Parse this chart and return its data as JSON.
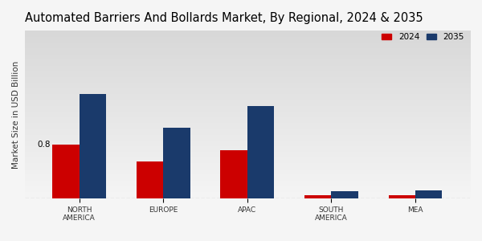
{
  "title": "Automated Barriers And Bollards Market, By Regional, 2024 & 2035",
  "ylabel": "Market Size in USD Billion",
  "categories": [
    "NORTH\nAMERICA",
    "EUROPE",
    "APAC",
    "SOUTH\nAMERICA",
    "MEA"
  ],
  "values_2024": [
    0.8,
    0.55,
    0.72,
    0.045,
    0.05
  ],
  "values_2035": [
    1.55,
    1.05,
    1.38,
    0.11,
    0.12
  ],
  "color_2024": "#cc0000",
  "color_2035": "#1a3a6b",
  "bar_width": 0.32,
  "annotation_value": "0.8",
  "background_color_top": "#d8d8d8",
  "background_color_bottom": "#f5f5f5",
  "title_fontsize": 10.5,
  "axis_label_fontsize": 7.5,
  "tick_fontsize": 6.5,
  "legend_labels": [
    "2024",
    "2035"
  ],
  "bottom_bar_color": "#cc0000",
  "ylim": [
    0,
    2.5
  ]
}
